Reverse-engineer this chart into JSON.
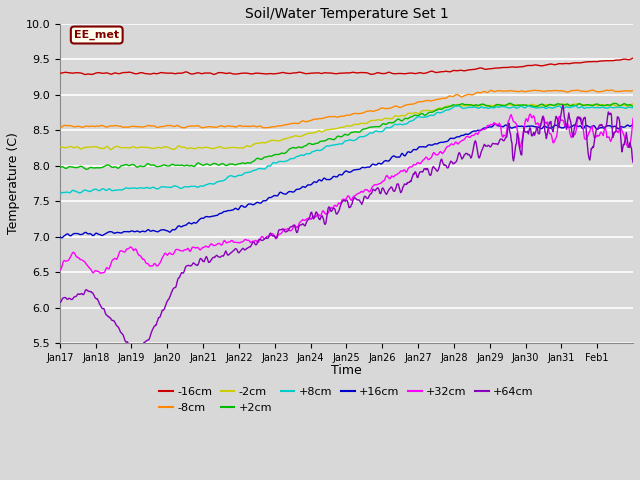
{
  "title": "Soil/Water Temperature Set 1",
  "xlabel": "Time",
  "ylabel": "Temperature (C)",
  "ylim": [
    5.5,
    10.0
  ],
  "plot_bg_color": "#d8d8d8",
  "fig_bg_color": "#d8d8d8",
  "annotation_text": "EE_met",
  "annotation_bg": "#fffff0",
  "annotation_border": "#800000",
  "x_tick_labels": [
    "Jan 17",
    "Jan 18",
    "Jan 19",
    "Jan 20",
    "Jan 21",
    "Jan 22",
    "Jan 23",
    "Jan 24",
    "Jan 25",
    "Jan 26",
    "Jan 27",
    "Jan 28",
    "Jan 29",
    "Jan 30",
    "Jan 31",
    "Feb 1"
  ],
  "legend_entries": [
    [
      "-16cm",
      "#cc0000"
    ],
    [
      "-8cm",
      "#ff8800"
    ],
    [
      "-2cm",
      "#cccc00"
    ],
    [
      "+2cm",
      "#00bb00"
    ],
    [
      "+8cm",
      "#00cccc"
    ],
    [
      "+16cm",
      "#0000cc"
    ],
    [
      "+32cm",
      "#ff00ff"
    ],
    [
      "+64cm",
      "#8800bb"
    ]
  ]
}
